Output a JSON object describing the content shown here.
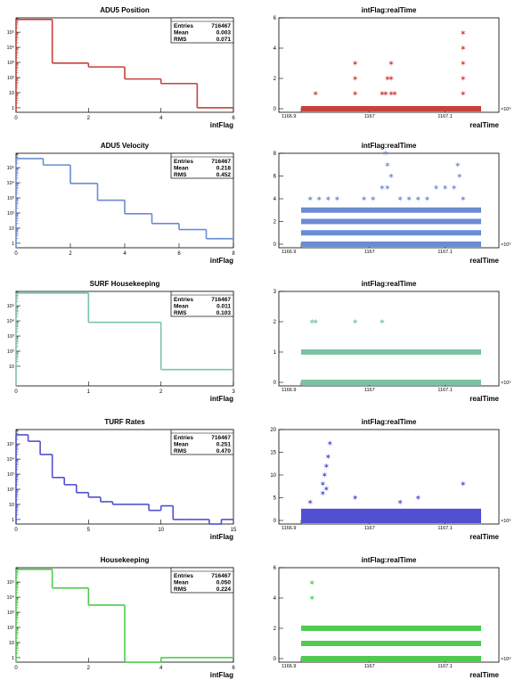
{
  "chart_data": [
    {
      "type": "histogram",
      "title": "ADU5 Position",
      "xlabel": "intFlag",
      "xlim": [
        0,
        6
      ],
      "yscale": "log",
      "color": "#c8403a",
      "xticks": [
        "0",
        "2",
        "4",
        "6"
      ],
      "yticks": [
        "1",
        "10",
        "10²",
        "10³",
        "10⁴",
        "10⁵"
      ],
      "stats": {
        "entries_label": "Entries",
        "entries": "716467",
        "mean_label": "Mean",
        "mean": "0.003",
        "rms_label": "RMS",
        "rms": "0.071"
      },
      "bins": [
        {
          "x0": 0,
          "x1": 1,
          "y": 700000
        },
        {
          "x0": 1,
          "x1": 2,
          "y": 900
        },
        {
          "x0": 2,
          "x1": 3,
          "y": 500
        },
        {
          "x0": 3,
          "x1": 4,
          "y": 80
        },
        {
          "x0": 4,
          "x1": 5,
          "y": 40
        },
        {
          "x0": 5,
          "x1": 6,
          "y": 1
        }
      ]
    },
    {
      "type": "scatter",
      "title": "intFlag:realTime",
      "xlabel": "realTime",
      "ylim": [
        0,
        6
      ],
      "color": "#c8403a",
      "yticks": [
        "0",
        "2",
        "4",
        "6"
      ],
      "xtick_labels": [
        "1166.9",
        "1167",
        "1167.1"
      ],
      "xexp": "×10⁶",
      "band_levels": [
        0
      ],
      "points": [
        [
          0.08,
          1
        ],
        [
          0.3,
          1
        ],
        [
          0.3,
          2
        ],
        [
          0.3,
          3
        ],
        [
          0.45,
          1
        ],
        [
          0.47,
          1
        ],
        [
          0.48,
          2
        ],
        [
          0.5,
          1
        ],
        [
          0.5,
          2
        ],
        [
          0.5,
          3
        ],
        [
          0.52,
          1
        ],
        [
          0.9,
          1
        ],
        [
          0.9,
          2
        ],
        [
          0.9,
          3
        ],
        [
          0.9,
          4
        ],
        [
          0.9,
          5
        ]
      ]
    },
    {
      "type": "histogram",
      "title": "ADU5 Velocity",
      "xlabel": "intFlag",
      "xlim": [
        0,
        8
      ],
      "yscale": "log",
      "color": "#6b8cd4",
      "xticks": [
        "0",
        "2",
        "4",
        "6",
        "8"
      ],
      "yticks": [
        "1",
        "10",
        "10²",
        "10³",
        "10⁴",
        "10⁵"
      ],
      "stats": {
        "entries_label": "Entries",
        "entries": "716467",
        "mean_label": "Mean",
        "mean": "0.218",
        "rms_label": "RMS",
        "rms": "0.452"
      },
      "bins": [
        {
          "x0": 0,
          "x1": 1,
          "y": 400000
        },
        {
          "x0": 1,
          "x1": 2,
          "y": 150000
        },
        {
          "x0": 2,
          "x1": 3,
          "y": 9000
        },
        {
          "x0": 3,
          "x1": 4,
          "y": 700
        },
        {
          "x0": 4,
          "x1": 5,
          "y": 90
        },
        {
          "x0": 5,
          "x1": 6,
          "y": 20
        },
        {
          "x0": 6,
          "x1": 7,
          "y": 8
        },
        {
          "x0": 7,
          "x1": 8,
          "y": 2
        }
      ]
    },
    {
      "type": "scatter",
      "title": "intFlag:realTime",
      "xlabel": "realTime",
      "ylim": [
        0,
        8
      ],
      "color": "#6b8cd4",
      "yticks": [
        "0",
        "2",
        "4",
        "6",
        "8"
      ],
      "xtick_labels": [
        "1166.9",
        "1167",
        "1167.1"
      ],
      "xexp": "×10⁶",
      "band_levels": [
        0,
        1,
        2,
        3
      ],
      "points": [
        [
          0.05,
          4
        ],
        [
          0.1,
          4
        ],
        [
          0.15,
          4
        ],
        [
          0.2,
          4
        ],
        [
          0.35,
          4
        ],
        [
          0.4,
          4
        ],
        [
          0.45,
          5
        ],
        [
          0.48,
          5
        ],
        [
          0.5,
          6
        ],
        [
          0.48,
          7
        ],
        [
          0.47,
          8
        ],
        [
          0.55,
          4
        ],
        [
          0.6,
          4
        ],
        [
          0.65,
          4
        ],
        [
          0.7,
          4
        ],
        [
          0.75,
          5
        ],
        [
          0.8,
          5
        ],
        [
          0.85,
          5
        ],
        [
          0.88,
          6
        ],
        [
          0.87,
          7
        ],
        [
          0.9,
          4
        ]
      ]
    },
    {
      "type": "histogram",
      "title": "SURF Housekeeping",
      "xlabel": "intFlag",
      "xlim": [
        0,
        3
      ],
      "yscale": "log",
      "color": "#7dc3a3",
      "xticks": [
        "0",
        "1",
        "2",
        "3"
      ],
      "yticks": [
        "10",
        "10²",
        "10³",
        "10⁴",
        "10⁵"
      ],
      "stats": {
        "entries_label": "Entries",
        "entries": "716467",
        "mean_label": "Mean",
        "mean": "0.011",
        "rms_label": "RMS",
        "rms": "0.103"
      },
      "bins": [
        {
          "x0": 0,
          "x1": 1,
          "y": 700000
        },
        {
          "x0": 1,
          "x1": 2,
          "y": 8000
        },
        {
          "x0": 2,
          "x1": 3,
          "y": 6
        }
      ]
    },
    {
      "type": "scatter",
      "title": "intFlag:realTime",
      "xlabel": "realTime",
      "ylim": [
        0,
        3
      ],
      "color": "#7dc3a3",
      "yticks": [
        "0",
        "1",
        "2",
        "3"
      ],
      "xtick_labels": [
        "1166.9",
        "1167",
        "1167.1"
      ],
      "xexp": "×10⁶",
      "band_levels": [
        0,
        1
      ],
      "points": [
        [
          0.06,
          2
        ],
        [
          0.08,
          2
        ],
        [
          0.3,
          2
        ],
        [
          0.45,
          2
        ]
      ]
    },
    {
      "type": "histogram",
      "title": "TURF Rates",
      "xlabel": "intFlag",
      "xlim": [
        0,
        18
      ],
      "yscale": "log",
      "color": "#5050d0",
      "xticks": [
        "0",
        "5",
        "10",
        "15"
      ],
      "yticks": [
        "1",
        "10",
        "10²",
        "10³",
        "10⁴",
        "10⁵"
      ],
      "stats": {
        "entries_label": "Entries",
        "entries": "716467",
        "mean_label": "Mean",
        "mean": "0.251",
        "rms_label": "RMS",
        "rms": "0.470"
      },
      "bins": [
        {
          "x0": 0,
          "x1": 1,
          "y": 400000
        },
        {
          "x0": 1,
          "x1": 2,
          "y": 150000
        },
        {
          "x0": 2,
          "x1": 3,
          "y": 20000
        },
        {
          "x0": 3,
          "x1": 4,
          "y": 600
        },
        {
          "x0": 4,
          "x1": 5,
          "y": 200
        },
        {
          "x0": 5,
          "x1": 6,
          "y": 60
        },
        {
          "x0": 6,
          "x1": 7,
          "y": 30
        },
        {
          "x0": 7,
          "x1": 8,
          "y": 15
        },
        {
          "x0": 8,
          "x1": 9,
          "y": 10
        },
        {
          "x0": 9,
          "x1": 10,
          "y": 10
        },
        {
          "x0": 10,
          "x1": 11,
          "y": 10
        },
        {
          "x0": 11,
          "x1": 12,
          "y": 4
        },
        {
          "x0": 12,
          "x1": 13,
          "y": 8
        },
        {
          "x0": 13,
          "x1": 14,
          "y": 1
        },
        {
          "x0": 14,
          "x1": 15,
          "y": 1
        },
        {
          "x0": 15,
          "x1": 16,
          "y": 1
        },
        {
          "x0": 16,
          "x1": 17,
          "y": 0.5
        },
        {
          "x0": 17,
          "x1": 18,
          "y": 1
        }
      ]
    },
    {
      "type": "scatter",
      "title": "intFlag:realTime",
      "xlabel": "realTime",
      "ylim": [
        0,
        20
      ],
      "color": "#5050d0",
      "yticks": [
        "0",
        "5",
        "10",
        "15",
        "20"
      ],
      "xtick_labels": [
        "1166.9",
        "1167",
        "1167.1"
      ],
      "xexp": "×10⁶",
      "band_levels": [
        0,
        1,
        2
      ],
      "points": [
        [
          0.05,
          4
        ],
        [
          0.12,
          8
        ],
        [
          0.13,
          10
        ],
        [
          0.14,
          12
        ],
        [
          0.15,
          14
        ],
        [
          0.16,
          17
        ],
        [
          0.12,
          6
        ],
        [
          0.14,
          7
        ],
        [
          0.3,
          5
        ],
        [
          0.55,
          4
        ],
        [
          0.65,
          5
        ],
        [
          0.9,
          8
        ]
      ]
    },
    {
      "type": "histogram",
      "title": "Housekeeping",
      "xlabel": "intFlag",
      "xlim": [
        0,
        6
      ],
      "yscale": "log",
      "color": "#4fcc4f",
      "xticks": [
        "0",
        "2",
        "4",
        "6"
      ],
      "yticks": [
        "1",
        "10",
        "10²",
        "10³",
        "10⁴",
        "10⁵"
      ],
      "stats": {
        "entries_label": "Entries",
        "entries": "716467",
        "mean_label": "Mean",
        "mean": "0.050",
        "rms_label": "RMS",
        "rms": "0.224"
      },
      "bins": [
        {
          "x0": 0,
          "x1": 1,
          "y": 700000
        },
        {
          "x0": 1,
          "x1": 2,
          "y": 40000
        },
        {
          "x0": 2,
          "x1": 3,
          "y": 3000
        },
        {
          "x0": 3,
          "x1": 4,
          "y": 0.5
        },
        {
          "x0": 4,
          "x1": 5,
          "y": 1
        },
        {
          "x0": 5,
          "x1": 6,
          "y": 1
        }
      ]
    },
    {
      "type": "scatter",
      "title": "intFlag:realTime",
      "xlabel": "realTime",
      "ylim": [
        0,
        6
      ],
      "color": "#4fcc4f",
      "yticks": [
        "0",
        "2",
        "4",
        "6"
      ],
      "xtick_labels": [
        "1166.9",
        "1167",
        "1167.1"
      ],
      "xexp": "×10⁶",
      "band_levels": [
        0,
        1,
        2
      ],
      "points": [
        [
          0.06,
          4
        ],
        [
          0.06,
          5
        ]
      ]
    }
  ]
}
